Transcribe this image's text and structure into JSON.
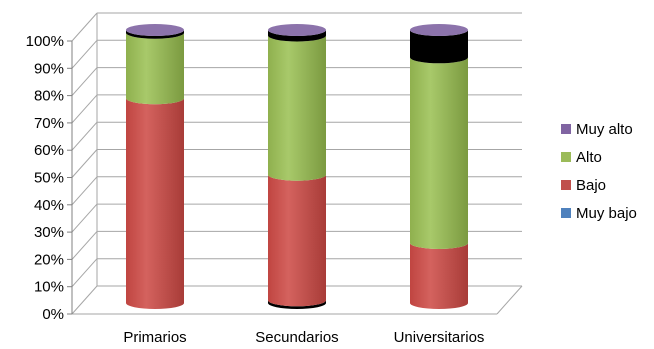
{
  "chart_data": {
    "type": "bar",
    "stacked": "percent",
    "style": "3d-cylinder",
    "categories": [
      "Primarios",
      "Secundarios",
      "Universitarios"
    ],
    "series": [
      {
        "name": "Muy bajo",
        "values": [
          0,
          1,
          0
        ],
        "color": "#4F81BD"
      },
      {
        "name": "Bajo",
        "values": [
          75,
          46,
          22
        ],
        "color": "#C0504D"
      },
      {
        "name": "Alto",
        "values": [
          24,
          51,
          68
        ],
        "color": "#9BBB59"
      },
      {
        "name": "Muy alto",
        "values": [
          1,
          2,
          10
        ],
        "color": "#8064A2"
      }
    ],
    "yticks": [
      "0%",
      "10%",
      "20%",
      "30%",
      "40%",
      "50%",
      "60%",
      "70%",
      "80%",
      "90%",
      "100%"
    ],
    "ylim": [
      0,
      100
    ],
    "grid": true,
    "legend_position": "right",
    "legend_order": [
      "Muy alto",
      "Alto",
      "Bajo",
      "Muy bajo"
    ]
  }
}
